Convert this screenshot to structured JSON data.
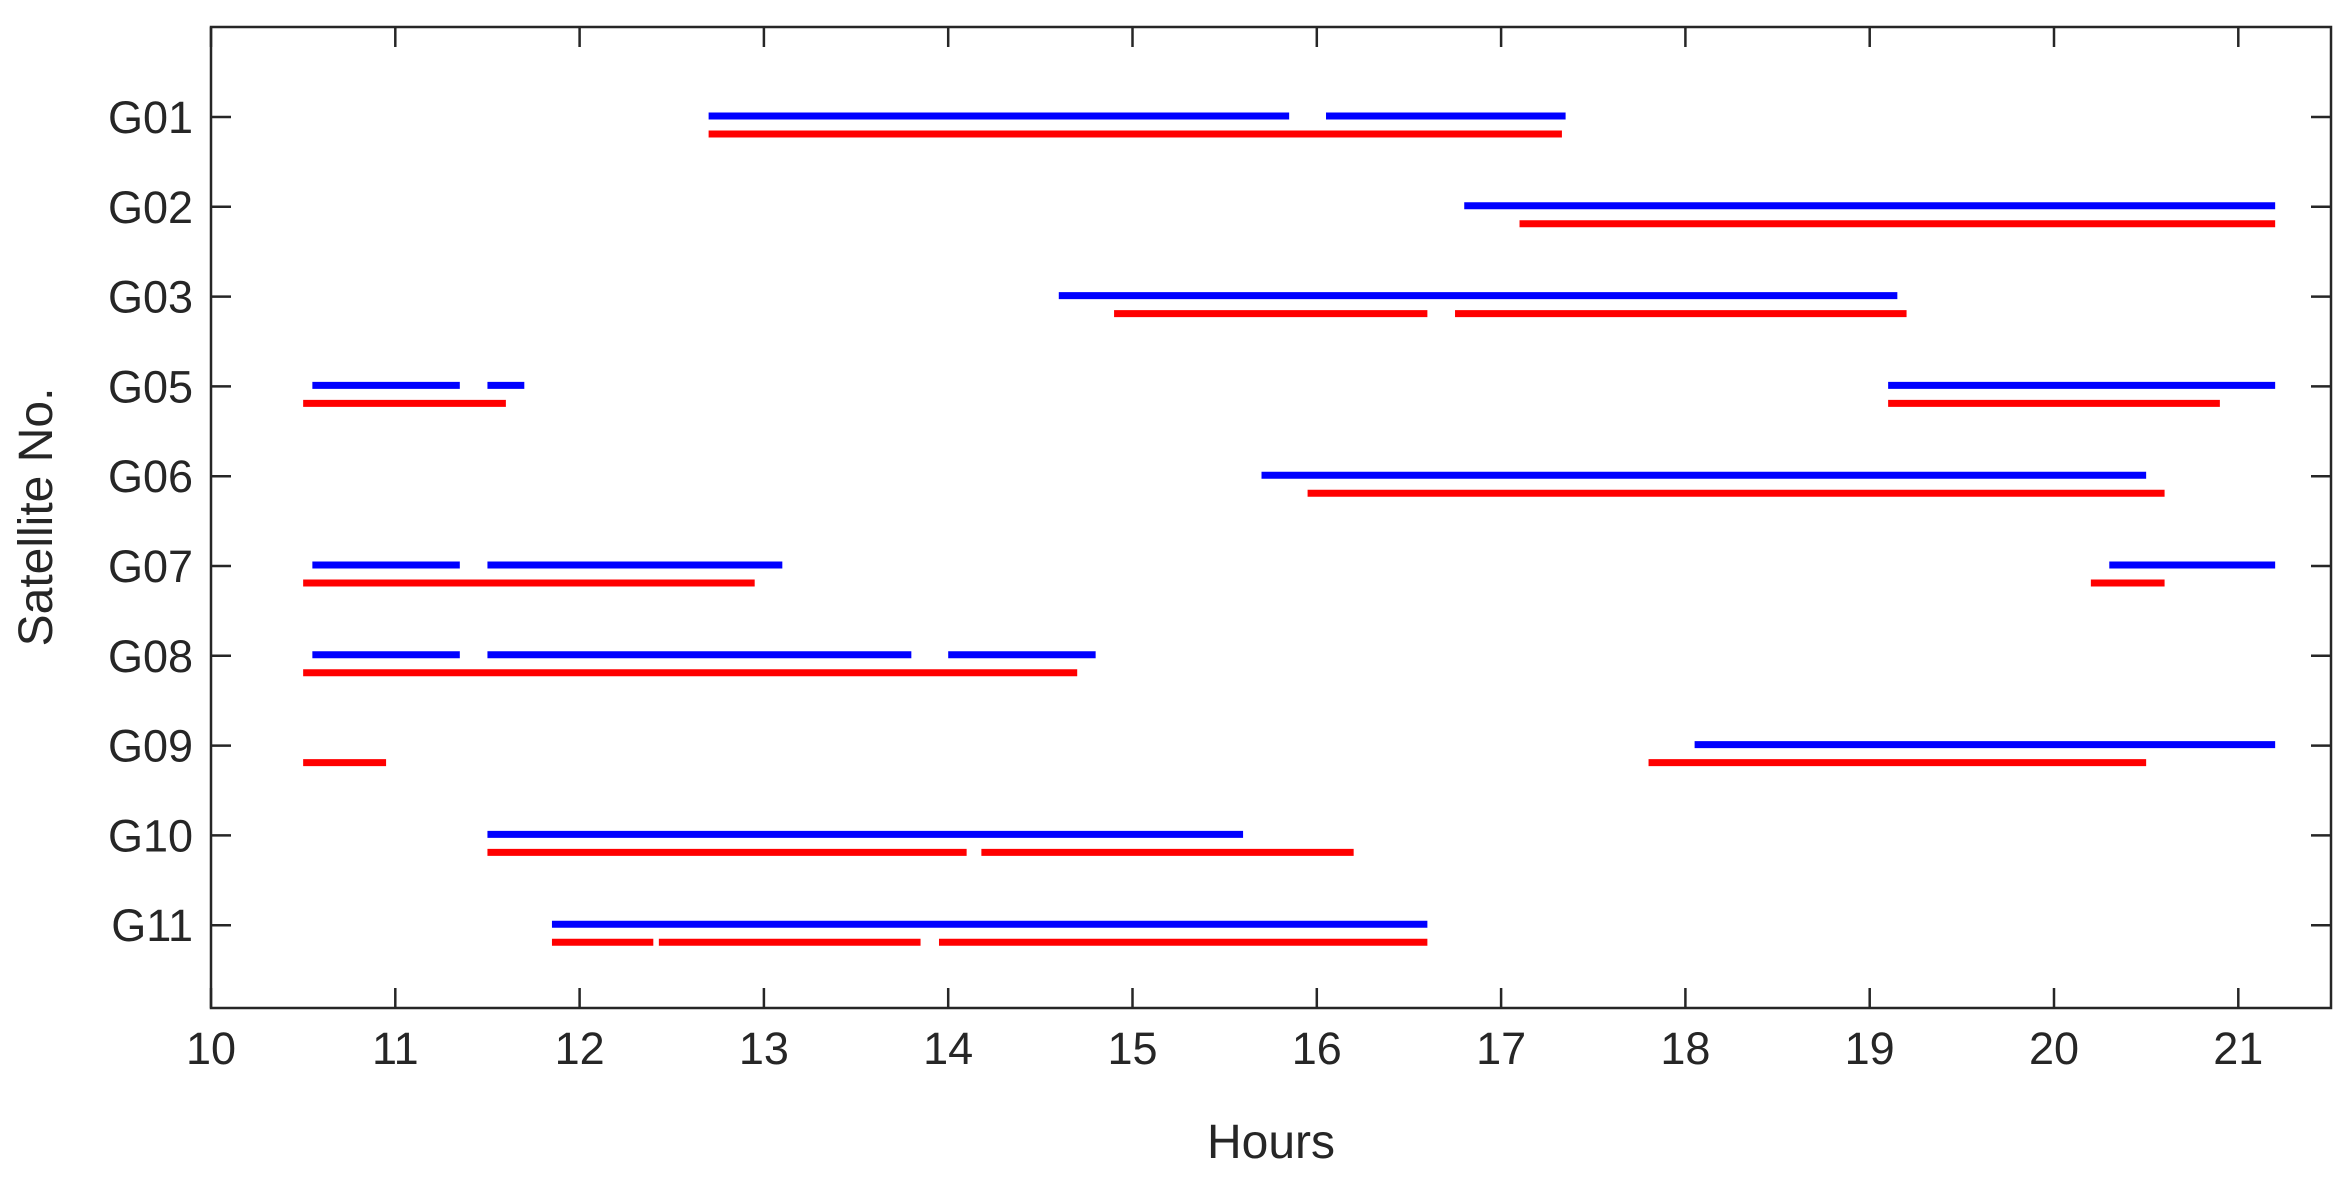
{
  "chart_data": {
    "type": "timeline",
    "xlabel": "Hours",
    "ylabel": "Satellite No.",
    "xlim": [
      10,
      21.5
    ],
    "xticks": [
      "10",
      "11",
      "12",
      "13",
      "14",
      "15",
      "16",
      "17",
      "18",
      "19",
      "20",
      "21"
    ],
    "categories": [
      "G01",
      "G02",
      "G03",
      "G05",
      "G06",
      "G07",
      "G08",
      "G09",
      "G10",
      "G11"
    ],
    "grid": false,
    "legend": "none",
    "series": [
      {
        "color": "#0000FF",
        "intervals": {
          "G01": [
            [
              12.7,
              15.85
            ],
            [
              16.05,
              17.35
            ]
          ],
          "G02": [
            [
              16.8,
              21.2
            ]
          ],
          "G03": [
            [
              14.6,
              19.15
            ]
          ],
          "G05": [
            [
              10.55,
              11.35
            ],
            [
              11.5,
              11.7
            ],
            [
              19.1,
              21.2
            ]
          ],
          "G06": [
            [
              15.7,
              20.5
            ]
          ],
          "G07": [
            [
              10.55,
              11.35
            ],
            [
              11.5,
              13.1
            ],
            [
              20.3,
              21.2
            ]
          ],
          "G08": [
            [
              10.55,
              11.35
            ],
            [
              11.5,
              13.8
            ],
            [
              14.0,
              14.8
            ]
          ],
          "G09": [
            [
              18.05,
              21.2
            ]
          ],
          "G10": [
            [
              11.5,
              15.6
            ]
          ],
          "G11": [
            [
              11.85,
              16.6
            ]
          ]
        }
      },
      {
        "color": "#FF0000",
        "intervals": {
          "G01": [
            [
              12.7,
              17.33
            ]
          ],
          "G02": [
            [
              17.1,
              21.2
            ]
          ],
          "G03": [
            [
              14.9,
              16.6
            ],
            [
              16.75,
              19.2
            ]
          ],
          "G05": [
            [
              10.5,
              11.6
            ],
            [
              19.1,
              20.9
            ]
          ],
          "G06": [
            [
              15.95,
              20.6
            ]
          ],
          "G07": [
            [
              10.5,
              12.95
            ],
            [
              20.2,
              20.6
            ]
          ],
          "G08": [
            [
              10.5,
              14.7
            ]
          ],
          "G09": [
            [
              10.5,
              10.95
            ],
            [
              17.8,
              20.5
            ]
          ],
          "G10": [
            [
              11.5,
              14.1
            ],
            [
              14.18,
              16.2
            ]
          ],
          "G11": [
            [
              11.85,
              12.4
            ],
            [
              12.43,
              13.85
            ],
            [
              13.95,
              16.6
            ]
          ]
        }
      }
    ]
  }
}
